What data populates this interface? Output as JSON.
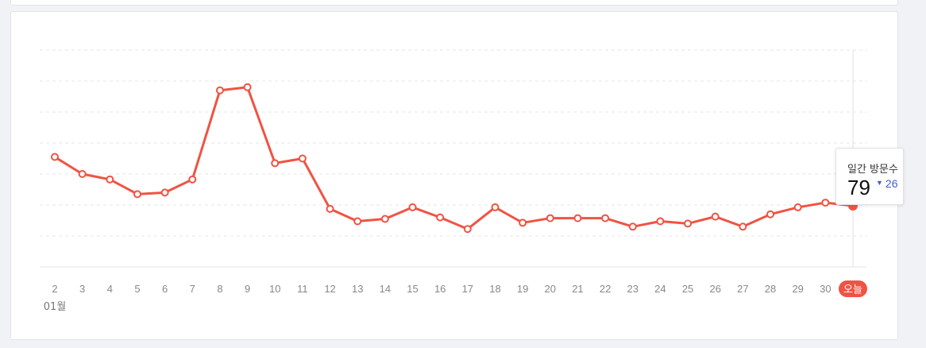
{
  "chart_data": {
    "type": "line",
    "categories": [
      "2",
      "3",
      "4",
      "5",
      "6",
      "7",
      "8",
      "9",
      "10",
      "11",
      "12",
      "13",
      "14",
      "15",
      "16",
      "17",
      "18",
      "19",
      "20",
      "21",
      "22",
      "23",
      "24",
      "25",
      "26",
      "27",
      "28",
      "29",
      "30",
      "오늘"
    ],
    "month_label": "01월",
    "series": [
      {
        "values": [
          142,
          120,
          113,
          94,
          96,
          113,
          228,
          232,
          134,
          140,
          75,
          59,
          62,
          77,
          64,
          49,
          77,
          57,
          63,
          63,
          63,
          52,
          59,
          56,
          65,
          52,
          68,
          77,
          83,
          79
        ],
        "color": "#f05343"
      }
    ],
    "highlight_index": 29,
    "today_badge_color": "#f05343",
    "ylim": [
      0,
      280
    ],
    "grid": true,
    "ytick_count": 7
  },
  "tooltip": {
    "label": "일간 방문수",
    "value": "79",
    "change": "26",
    "direction": "down",
    "change_color": "#3d5fc9"
  }
}
